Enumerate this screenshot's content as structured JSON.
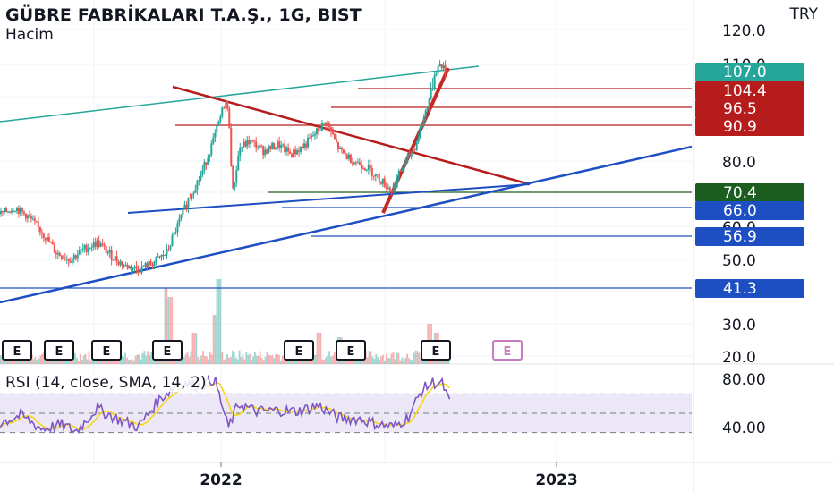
{
  "header": {
    "title": "GÜBRE FABRİKALARI T.A.Ş., 1G, BIST",
    "subtitle": "Hacim",
    "currency": "TRY"
  },
  "rsi": {
    "label": "RSI (14, close, SMA, 14, 2)",
    "ticks": [
      "80.00",
      "40.00"
    ],
    "band_color": "#ede8f7",
    "line_color": "#7e57c2",
    "sma_color": "#f5d516"
  },
  "colors": {
    "candle_up": "#26a69a",
    "candle_down": "#ef5350",
    "trend_teal": "#26a69a",
    "trend_red": "#b71c1c",
    "trend_blue": "#1e4fc2",
    "hline_red": "#b71c1c",
    "hline_blue": "#1e4fc2",
    "hline_green": "#1b5e20"
  },
  "earnings_markers": [
    "E",
    "E",
    "E",
    "E",
    "E",
    "E",
    "E",
    "E"
  ],
  "chart_data": {
    "type": "candlestick",
    "title": "GÜBRE FABRİKALARI T.A.Ş., 1G, BIST",
    "currency": "TRY",
    "x_labels": [
      "2022",
      "2023"
    ],
    "y_ticks": [
      "120.0",
      "110.0",
      "80.0",
      "60.0",
      "50.0",
      "30.0",
      "20.0"
    ],
    "price_levels": [
      {
        "value": "107.0",
        "color": "#26a69a",
        "role": "last price"
      },
      {
        "value": "104.4",
        "color": "#b71c1c"
      },
      {
        "value": "96.5",
        "color": "#b71c1c"
      },
      {
        "value": "90.9",
        "color": "#b71c1c"
      },
      {
        "value": "70.4",
        "color": "#1b5e20"
      },
      {
        "value": "66.0",
        "color": "#1e4fc2"
      },
      {
        "value": "56.9",
        "color": "#1e4fc2"
      },
      {
        "value": "41.3",
        "color": "#1e4fc2"
      }
    ],
    "price_path": [
      [
        0.0,
        64
      ],
      [
        0.02,
        66
      ],
      [
        0.04,
        63
      ],
      [
        0.06,
        58
      ],
      [
        0.08,
        52
      ],
      [
        0.1,
        50
      ],
      [
        0.12,
        53
      ],
      [
        0.14,
        55
      ],
      [
        0.16,
        51
      ],
      [
        0.18,
        48
      ],
      [
        0.2,
        47
      ],
      [
        0.22,
        49
      ],
      [
        0.24,
        52
      ],
      [
        0.255,
        60
      ],
      [
        0.27,
        68
      ],
      [
        0.29,
        76
      ],
      [
        0.31,
        88
      ],
      [
        0.325,
        99
      ],
      [
        0.33,
        92
      ],
      [
        0.335,
        70
      ],
      [
        0.345,
        84
      ],
      [
        0.36,
        86
      ],
      [
        0.38,
        83
      ],
      [
        0.4,
        85
      ],
      [
        0.42,
        82
      ],
      [
        0.44,
        85
      ],
      [
        0.47,
        92
      ],
      [
        0.49,
        83
      ],
      [
        0.51,
        80
      ],
      [
        0.53,
        78
      ],
      [
        0.55,
        74
      ],
      [
        0.565,
        71
      ],
      [
        0.58,
        78
      ],
      [
        0.6,
        85
      ],
      [
        0.615,
        96
      ],
      [
        0.625,
        106
      ],
      [
        0.635,
        110
      ],
      [
        0.645,
        107
      ]
    ],
    "rsi_path": [
      [
        0.0,
        40
      ],
      [
        0.03,
        48
      ],
      [
        0.06,
        34
      ],
      [
        0.09,
        38
      ],
      [
        0.11,
        31
      ],
      [
        0.14,
        55
      ],
      [
        0.17,
        44
      ],
      [
        0.2,
        36
      ],
      [
        0.23,
        64
      ],
      [
        0.26,
        82
      ],
      [
        0.29,
        78
      ],
      [
        0.31,
        86
      ],
      [
        0.33,
        35
      ],
      [
        0.345,
        60
      ],
      [
        0.37,
        52
      ],
      [
        0.4,
        53
      ],
      [
        0.43,
        52
      ],
      [
        0.46,
        58
      ],
      [
        0.49,
        45
      ],
      [
        0.52,
        44
      ],
      [
        0.55,
        38
      ],
      [
        0.57,
        36
      ],
      [
        0.59,
        46
      ],
      [
        0.61,
        74
      ],
      [
        0.625,
        82
      ],
      [
        0.64,
        80
      ],
      [
        0.65,
        60
      ]
    ],
    "volume_spikes": [
      [
        0.24,
        0.85
      ],
      [
        0.245,
        0.75
      ],
      [
        0.31,
        0.55
      ],
      [
        0.315,
        0.95
      ],
      [
        0.28,
        0.35
      ],
      [
        0.46,
        0.35
      ],
      [
        0.49,
        0.3
      ],
      [
        0.62,
        0.45
      ],
      [
        0.63,
        0.35
      ]
    ]
  }
}
